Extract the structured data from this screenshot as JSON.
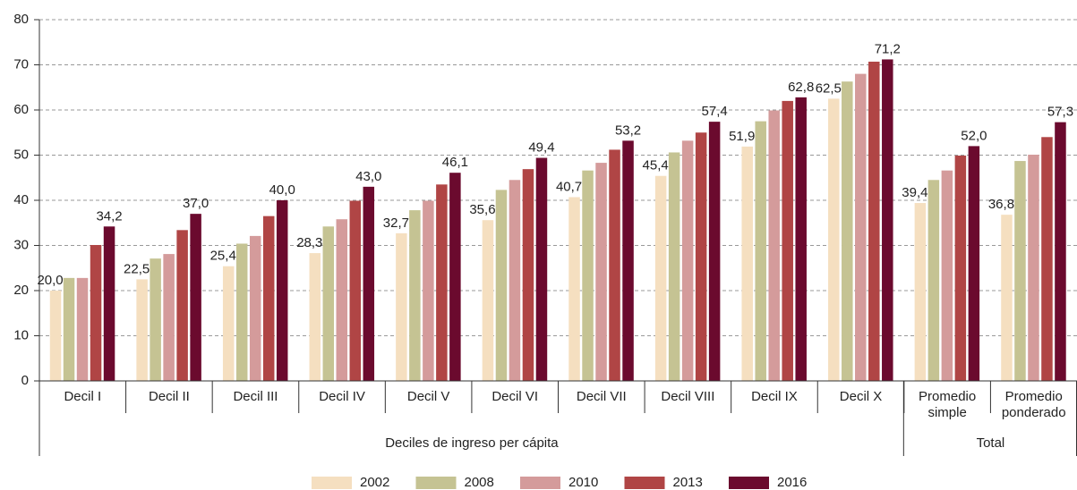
{
  "chart_data": {
    "type": "bar",
    "categories": [
      "Decil I",
      "Decil II",
      "Decil III",
      "Decil IV",
      "Decil V",
      "Decil VI",
      "Decil VII",
      "Decil VIII",
      "Decil IX",
      "Decil X",
      "Promedio simple",
      "Promedio ponderado"
    ],
    "groups": [
      {
        "label": "Deciles de ingreso per cápita",
        "count": 10
      },
      {
        "label": "Total",
        "count": 2
      }
    ],
    "series": [
      {
        "name": "2002",
        "color": "#f5dfc0",
        "values": [
          20.0,
          22.5,
          25.4,
          28.3,
          32.7,
          35.6,
          40.7,
          45.4,
          51.9,
          62.5,
          39.4,
          36.8
        ],
        "value_labels": [
          "20,0",
          "22,5",
          "25,4",
          "28,3",
          "32,7",
          "35,6",
          "40,7",
          "45,4",
          "51,9",
          "62,5",
          "39,4",
          "36,8"
        ]
      },
      {
        "name": "2008",
        "color": "#c5c393",
        "values": [
          22.8,
          27.1,
          30.4,
          34.2,
          37.8,
          42.3,
          46.6,
          50.6,
          57.5,
          66.3,
          44.5,
          48.7
        ]
      },
      {
        "name": "2010",
        "color": "#d49b9b",
        "values": [
          22.8,
          28.1,
          32.1,
          35.8,
          39.9,
          44.5,
          48.3,
          53.2,
          59.9,
          68.0,
          46.6,
          50.1
        ]
      },
      {
        "name": "2013",
        "color": "#b04545",
        "values": [
          30.1,
          33.4,
          36.5,
          39.9,
          43.5,
          46.9,
          51.2,
          55.0,
          62.0,
          70.7,
          49.9,
          54.0
        ]
      },
      {
        "name": "2016",
        "color": "#6b0a2e",
        "values": [
          34.2,
          37.0,
          40.0,
          43.0,
          46.1,
          49.4,
          53.2,
          57.4,
          62.8,
          71.2,
          52.0,
          57.3
        ],
        "value_labels": [
          "34,2",
          "37,0",
          "40,0",
          "43,0",
          "46,1",
          "49,4",
          "53,2",
          "57,4",
          "62,8",
          "71,2",
          "52,0",
          "57,3"
        ]
      }
    ],
    "ylim": [
      0,
      80
    ],
    "yticks": [
      0,
      10,
      20,
      30,
      40,
      50,
      60,
      70,
      80
    ],
    "grid": true,
    "legend": "bottom"
  }
}
